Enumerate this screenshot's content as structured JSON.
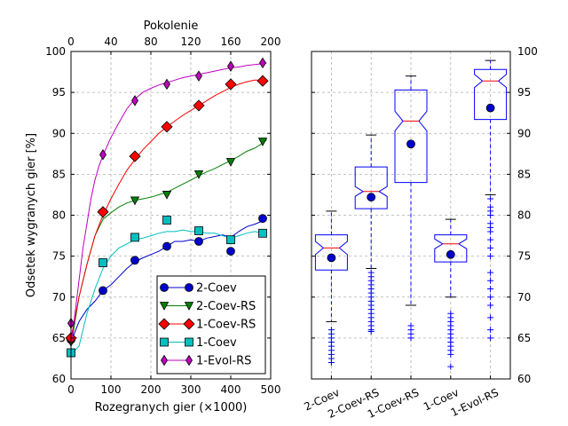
{
  "chart_data": [
    {
      "type": "line",
      "xlabel": "Rozegranych gier (×1000)",
      "ylabel": "Odsetek wygranych gier [%]",
      "top_xlabel": "Pokolenie",
      "xlim": [
        0,
        500
      ],
      "ylim": [
        60,
        100
      ],
      "top_xlim": [
        0,
        200
      ],
      "x_ticks": [
        0,
        100,
        200,
        300,
        400,
        500
      ],
      "top_x_ticks": [
        0,
        40,
        80,
        120,
        160,
        200
      ],
      "y_ticks": [
        60,
        65,
        70,
        75,
        80,
        85,
        90,
        95,
        100
      ],
      "grid": true,
      "legend_position": "bottom-right",
      "series": [
        {
          "name": "2-Coev",
          "color": "#0000cc",
          "marker": "circle",
          "x": [
            0,
            20,
            40,
            60,
            80,
            100,
            120,
            140,
            160,
            180,
            200,
            220,
            240,
            260,
            280,
            300,
            320,
            340,
            360,
            380,
            400,
            420,
            440,
            460,
            480,
            490
          ],
          "y": [
            64.5,
            67,
            68.5,
            69.5,
            70.8,
            71.5,
            72.5,
            73.5,
            74.3,
            74.8,
            75.2,
            75.6,
            76.2,
            76.8,
            76.8,
            77,
            76.8,
            77.2,
            77.4,
            77.6,
            77.3,
            78,
            78.6,
            78.9,
            79.3,
            79.5
          ],
          "markers_x": [
            0,
            80,
            160,
            240,
            320,
            400,
            480
          ],
          "markers_y": [
            64.8,
            70.8,
            74.5,
            76.2,
            76.8,
            75.6,
            79.6
          ]
        },
        {
          "name": "2-Coev-RS",
          "color": "#008000",
          "marker": "triangle-down",
          "x": [
            0,
            20,
            40,
            60,
            80,
            100,
            120,
            140,
            160,
            180,
            200,
            220,
            240,
            260,
            280,
            300,
            320,
            340,
            360,
            380,
            400,
            420,
            440,
            460,
            480,
            490
          ],
          "y": [
            64,
            70,
            74,
            77.5,
            79.5,
            80.3,
            81,
            81.5,
            81.8,
            82,
            82.2,
            82.5,
            82.8,
            83.3,
            83.8,
            84.3,
            84.8,
            85.3,
            85.7,
            86.2,
            86.7,
            87.2,
            87.8,
            88.2,
            88.8,
            89.2
          ],
          "markers_x": [
            0,
            80,
            160,
            240,
            320,
            400,
            480
          ],
          "markers_y": [
            64.5,
            80.2,
            81.8,
            82.5,
            85,
            86.5,
            89
          ]
        },
        {
          "name": "1-Coev-RS",
          "color": "#ff0000",
          "marker": "diamond",
          "x": [
            0,
            20,
            40,
            60,
            80,
            100,
            120,
            140,
            160,
            180,
            200,
            220,
            240,
            260,
            280,
            300,
            320,
            340,
            360,
            380,
            400,
            420,
            440,
            460,
            480,
            490
          ],
          "y": [
            65,
            70,
            74,
            77.5,
            80,
            82,
            83.8,
            85.5,
            86.8,
            88,
            89,
            90,
            90.8,
            91.5,
            92.2,
            92.8,
            93.4,
            94,
            94.6,
            95.1,
            95.6,
            96,
            96.3,
            96.5,
            96.5,
            96.4
          ],
          "markers_x": [
            0,
            80,
            160,
            240,
            320,
            400,
            480
          ],
          "markers_y": [
            65,
            80.4,
            87.2,
            90.8,
            93.4,
            96,
            96.4
          ]
        },
        {
          "name": "1-Coev",
          "color": "#00bfbf",
          "marker": "square",
          "x": [
            0,
            20,
            40,
            60,
            80,
            100,
            120,
            140,
            160,
            180,
            200,
            220,
            240,
            260,
            280,
            300,
            320,
            340,
            360,
            380,
            400,
            420,
            440,
            460,
            480,
            490
          ],
          "y": [
            63,
            64,
            68,
            71,
            73.5,
            75,
            76,
            76.5,
            77,
            77.2,
            77.5,
            77.8,
            78,
            78,
            78.2,
            78,
            78,
            77.8,
            77.8,
            77.5,
            77.2,
            77.5,
            77.8,
            78,
            77.8,
            77.8
          ],
          "markers_x": [
            0,
            80,
            160,
            240,
            320,
            400,
            480
          ],
          "markers_y": [
            63.2,
            74.2,
            77.3,
            79.4,
            78.1,
            77,
            77.8
          ]
        },
        {
          "name": "1-Evol-RS",
          "color": "#bf00bf",
          "marker": "diamond-thin",
          "x": [
            0,
            10,
            20,
            30,
            40,
            50,
            60,
            70,
            80,
            100,
            120,
            140,
            160,
            180,
            200,
            220,
            240,
            260,
            280,
            300,
            320,
            340,
            360,
            380,
            400,
            420,
            440,
            460,
            480,
            490
          ],
          "y": [
            64,
            68,
            72,
            76,
            79,
            82,
            84.3,
            86,
            87.3,
            89.5,
            91.3,
            93,
            94.2,
            95,
            95.5,
            95.9,
            96.2,
            96.5,
            96.8,
            97,
            97.2,
            97.4,
            97.6,
            97.8,
            98,
            98.1,
            98.3,
            98.4,
            98.5,
            98.6
          ],
          "markers_x": [
            0,
            80,
            160,
            240,
            320,
            400,
            480
          ],
          "markers_y": [
            66.8,
            87.4,
            94,
            96,
            97,
            98.2,
            98.6
          ]
        }
      ]
    },
    {
      "type": "box",
      "categories": [
        "2-Coev",
        "2-Coev-RS",
        "1-Coev-RS",
        "1-Coev",
        "1-Evol-RS"
      ],
      "ylim": [
        60,
        100
      ],
      "y_ticks": [
        60,
        65,
        70,
        75,
        80,
        85,
        90,
        95,
        100
      ],
      "grid": true,
      "box_color": "#0000ff",
      "median_color": "#ff0000",
      "boxes": [
        {
          "name": "2-Coev",
          "q1": 73.3,
          "median": 76,
          "q3": 77.6,
          "whisker_low": 67,
          "whisker_high": 80.5,
          "mean": 74.8,
          "notch_low": 75.2,
          "notch_high": 76.8,
          "outliers": [
            66,
            65.5,
            65,
            64.5,
            64,
            63.5,
            63,
            62.5,
            62
          ]
        },
        {
          "name": "2-Coev-RS",
          "q1": 80.8,
          "median": 82.9,
          "q3": 85.9,
          "whisker_low": 73.5,
          "whisker_high": 89.8,
          "mean": 82.2,
          "notch_low": 82.3,
          "notch_high": 83.5,
          "outliers": [
            73,
            72.5,
            72,
            71.5,
            71,
            70.5,
            70,
            69.5,
            69,
            68.5,
            68,
            67.5,
            67,
            66.5,
            66,
            65.8
          ]
        },
        {
          "name": "1-Coev-RS",
          "q1": 84,
          "median": 91.5,
          "q3": 95.3,
          "whisker_low": 69,
          "whisker_high": 97,
          "mean": 88.7,
          "notch_low": 90.3,
          "notch_high": 92.7,
          "outliers": [
            66.5,
            66,
            65.5,
            65
          ]
        },
        {
          "name": "1-Coev",
          "q1": 74.3,
          "median": 76.5,
          "q3": 77.6,
          "whisker_low": 70,
          "whisker_high": 79.5,
          "mean": 75.2,
          "notch_low": 75.9,
          "notch_high": 77.1,
          "outliers": [
            68,
            67.5,
            67,
            66.5,
            66,
            65.5,
            65,
            64.5,
            64,
            63.5,
            63,
            61.5
          ]
        },
        {
          "name": "1-Evol-RS",
          "q1": 91.7,
          "median": 96.4,
          "q3": 97.8,
          "whisker_low": 82.5,
          "whisker_high": 98.9,
          "mean": 93.1,
          "notch_low": 95.6,
          "notch_high": 97.2,
          "outliers": [
            82,
            81,
            80.5,
            80,
            79,
            78.5,
            78,
            77,
            76,
            75,
            73,
            72,
            71,
            70,
            69,
            67.5,
            66,
            65
          ]
        }
      ]
    }
  ]
}
